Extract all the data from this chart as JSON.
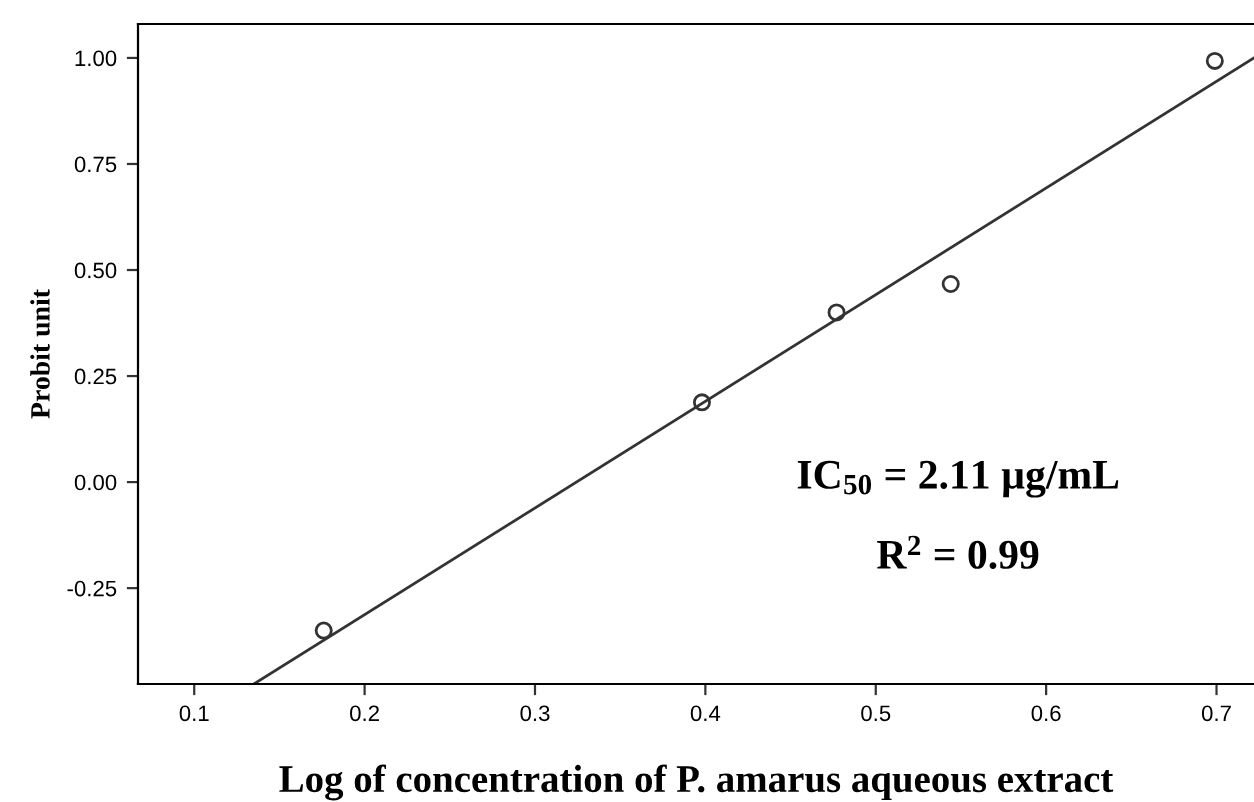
{
  "chart_data": {
    "type": "scatter",
    "xlabel": "Log of concentration of P. amarus aqueous extract",
    "ylabel": "Probit unit",
    "xlim": [
      0.067,
      0.722
    ],
    "ylim": [
      -0.476,
      1.08
    ],
    "xticks": [
      {
        "value": 0.1,
        "label": "0.1"
      },
      {
        "value": 0.2,
        "label": "0.2"
      },
      {
        "value": 0.3,
        "label": "0.3"
      },
      {
        "value": 0.4,
        "label": "0.4"
      },
      {
        "value": 0.5,
        "label": "0.5"
      },
      {
        "value": 0.6,
        "label": "0.6"
      },
      {
        "value": 0.7,
        "label": "0.7"
      }
    ],
    "yticks": [
      {
        "value": -0.25,
        "label": "-0.25"
      },
      {
        "value": 0,
        "label": "0.00"
      },
      {
        "value": 0.25,
        "label": "0.25"
      },
      {
        "value": 0.5,
        "label": "0.50"
      },
      {
        "value": 0.75,
        "label": "0.75"
      },
      {
        "value": 1,
        "label": "1.00"
      }
    ],
    "grid": false,
    "series": [
      {
        "marker": "circle",
        "color": "#333333",
        "x": [
          0.176,
          0.398,
          0.477,
          0.544,
          0.699
        ],
        "values": [
          -0.35,
          0.188,
          0.4,
          0.467,
          0.993
        ]
      },
      {
        "type": "line",
        "color": "#333333",
        "x": [
          0.135,
          0.722
        ],
        "values": [
          -0.476,
          1.0
        ]
      }
    ],
    "annotations": [
      "IC$_{50}$ = 2.11 µg/mL",
      "R$^{2}$ = 0.99"
    ]
  }
}
